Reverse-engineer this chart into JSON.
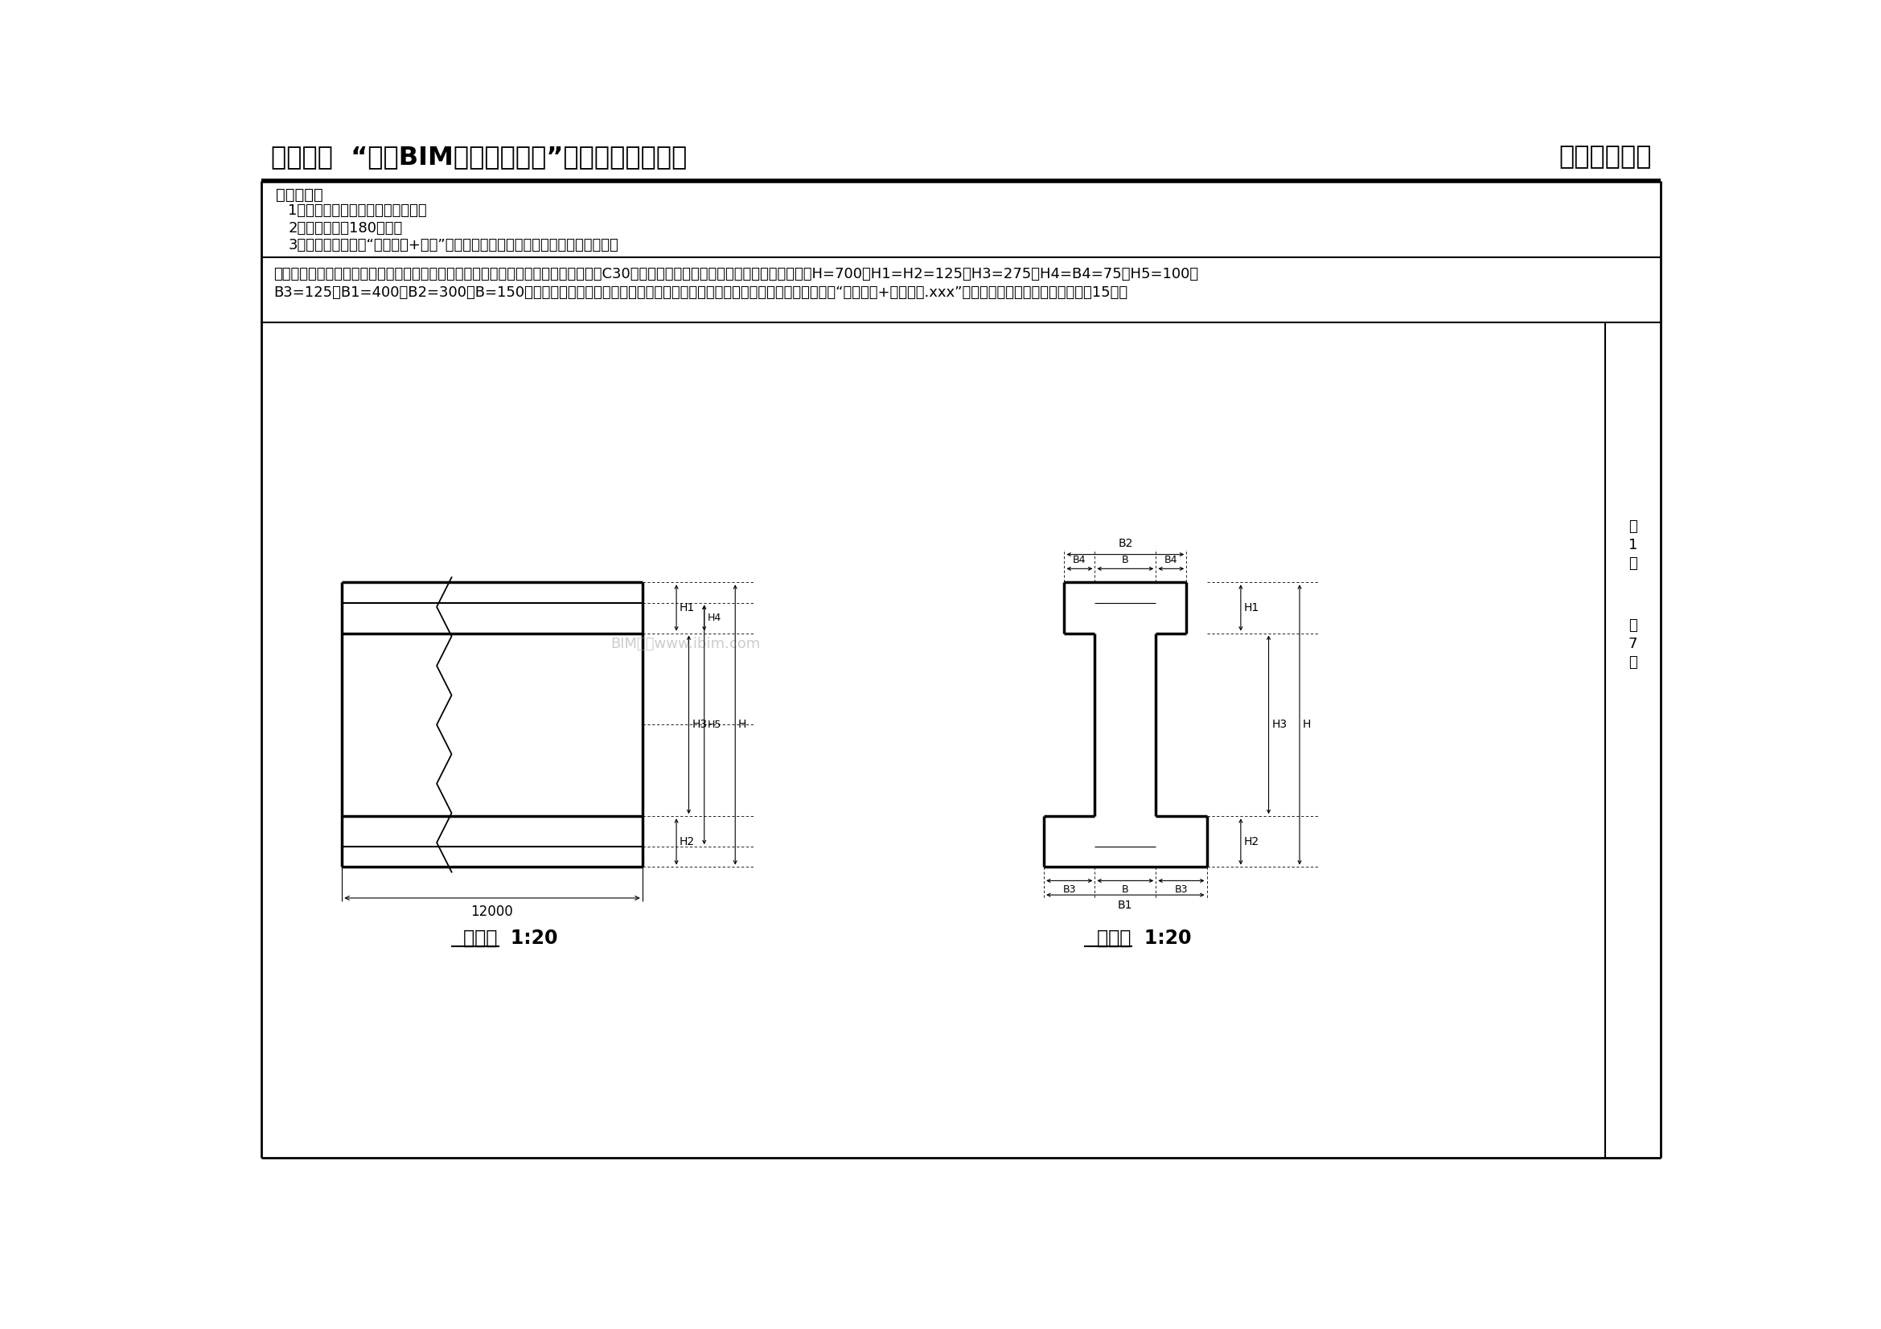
{
  "title_left": "第十二期  “全国BIM技能等级考试”二级（结构）试题",
  "title_right": "中国图学学会",
  "requirements_title": "考试要求：",
  "req1": "1、考试方式：计算机操作，闭卷；",
  "req2": "2、考试时间：180分钟；",
  "req3": "3、新建文件夹，以“准考证号+姓名”命名，用于存放本次考试中生成的全部文件。",
  "q_line1": "一、根据如下混凝土梁正视图与侧视图，建立混凝土梁构件参数化模板，混凝土强度取C30，并如图设置相应参数名称，各参数默认值为：H=700，H1=H2=125，H3=275，H4=B4=75，H5=100，",
  "q_line2": "B3=125，B1=400，B2=300，B=150，同时应对各参数进行约束，确保细部参数数总和等于总体尺寸参数。请将模型以“混凝土梁+考生姓名.xxx”为文件名保存到考生文件夹中。（15分）",
  "watermark": "BIM考证www.ibim.com",
  "front_view_label": "正视图  1:20",
  "side_view_label": "侧视图  1:20",
  "bg_color": "#ffffff"
}
